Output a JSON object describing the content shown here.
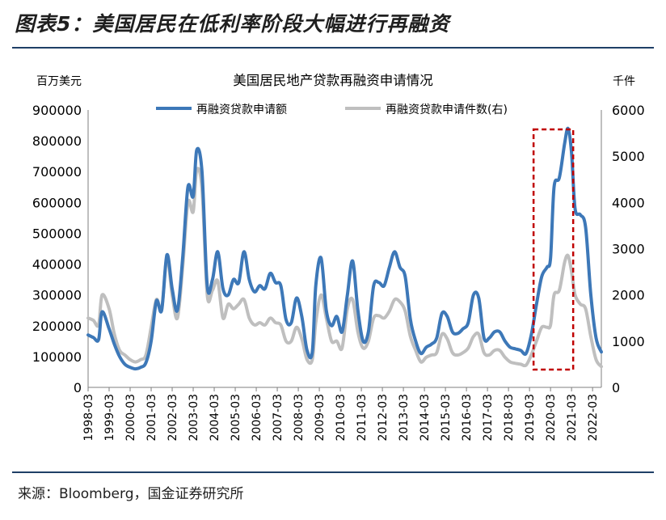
{
  "figure": {
    "title": "图表5：美国居民在低利率阶段大幅进行再融资",
    "source": "来源：Bloomberg，国金证券研究所"
  },
  "chart_data": {
    "type": "line",
    "title": "美国居民地产贷款再融资申请情况",
    "left_unit": "百万美元",
    "right_unit": "千件",
    "y_left": {
      "min": 0,
      "max": 900000,
      "ticks": [
        0,
        100000,
        200000,
        300000,
        400000,
        500000,
        600000,
        700000,
        800000,
        900000
      ]
    },
    "y_right": {
      "min": 0,
      "max": 6000,
      "ticks": [
        0,
        1000,
        2000,
        3000,
        4000,
        5000,
        6000
      ]
    },
    "x_range": [
      "1998-03",
      "2022-08"
    ],
    "x_tick_labels": [
      "1998-03",
      "1999-03",
      "2000-03",
      "2001-03",
      "2002-03",
      "2003-03",
      "2004-03",
      "2005-03",
      "2006-03",
      "2007-03",
      "2008-03",
      "2009-03",
      "2010-03",
      "2011-03",
      "2012-03",
      "2013-03",
      "2014-03",
      "2015-03",
      "2016-03",
      "2017-03",
      "2018-03",
      "2019-03",
      "2020-03",
      "2021-03",
      "2022-03"
    ],
    "legend_placement": "top",
    "highlight_box": {
      "from": "2019-03",
      "to": "2021-03"
    },
    "series": [
      {
        "name": "再融资贷款申请额",
        "axis": "left",
        "color": "#3d78b8",
        "points": [
          [
            "1998-03",
            170000
          ],
          [
            "1998-06",
            162000
          ],
          [
            "1998-09",
            155000
          ],
          [
            "1998-11",
            245000
          ],
          [
            "1999-03",
            190000
          ],
          [
            "1999-06",
            140000
          ],
          [
            "1999-09",
            100000
          ],
          [
            "1999-12",
            75000
          ],
          [
            "2000-03",
            65000
          ],
          [
            "2000-06",
            60000
          ],
          [
            "2000-09",
            65000
          ],
          [
            "2000-12",
            80000
          ],
          [
            "2001-03",
            150000
          ],
          [
            "2001-06",
            280000
          ],
          [
            "2001-09",
            250000
          ],
          [
            "2001-12",
            430000
          ],
          [
            "2002-03",
            320000
          ],
          [
            "2002-06",
            250000
          ],
          [
            "2002-09",
            420000
          ],
          [
            "2002-12",
            650000
          ],
          [
            "2003-03",
            620000
          ],
          [
            "2003-05",
            770000
          ],
          [
            "2003-08",
            700000
          ],
          [
            "2003-11",
            330000
          ],
          [
            "2004-02",
            350000
          ],
          [
            "2004-05",
            440000
          ],
          [
            "2004-08",
            320000
          ],
          [
            "2004-11",
            300000
          ],
          [
            "2005-02",
            350000
          ],
          [
            "2005-05",
            340000
          ],
          [
            "2005-08",
            440000
          ],
          [
            "2005-11",
            350000
          ],
          [
            "2006-02",
            310000
          ],
          [
            "2006-05",
            330000
          ],
          [
            "2006-08",
            320000
          ],
          [
            "2006-11",
            370000
          ],
          [
            "2007-02",
            340000
          ],
          [
            "2007-05",
            330000
          ],
          [
            "2007-08",
            220000
          ],
          [
            "2007-11",
            210000
          ],
          [
            "2008-02",
            290000
          ],
          [
            "2008-05",
            230000
          ],
          [
            "2008-08",
            120000
          ],
          [
            "2008-11",
            115000
          ],
          [
            "2009-01",
            330000
          ],
          [
            "2009-04",
            420000
          ],
          [
            "2009-07",
            250000
          ],
          [
            "2009-10",
            200000
          ],
          [
            "2010-01",
            230000
          ],
          [
            "2010-04",
            180000
          ],
          [
            "2010-07",
            300000
          ],
          [
            "2010-10",
            410000
          ],
          [
            "2011-01",
            250000
          ],
          [
            "2011-04",
            150000
          ],
          [
            "2011-07",
            180000
          ],
          [
            "2011-10",
            330000
          ],
          [
            "2012-01",
            340000
          ],
          [
            "2012-04",
            330000
          ],
          [
            "2012-07",
            390000
          ],
          [
            "2012-10",
            440000
          ],
          [
            "2013-01",
            390000
          ],
          [
            "2013-04",
            360000
          ],
          [
            "2013-07",
            220000
          ],
          [
            "2013-10",
            150000
          ],
          [
            "2014-01",
            110000
          ],
          [
            "2014-04",
            130000
          ],
          [
            "2014-07",
            140000
          ],
          [
            "2014-10",
            160000
          ],
          [
            "2015-01",
            240000
          ],
          [
            "2015-04",
            230000
          ],
          [
            "2015-07",
            180000
          ],
          [
            "2015-10",
            175000
          ],
          [
            "2016-01",
            190000
          ],
          [
            "2016-04",
            210000
          ],
          [
            "2016-07",
            300000
          ],
          [
            "2016-10",
            290000
          ],
          [
            "2017-01",
            160000
          ],
          [
            "2017-04",
            160000
          ],
          [
            "2017-07",
            180000
          ],
          [
            "2017-10",
            180000
          ],
          [
            "2018-01",
            150000
          ],
          [
            "2018-04",
            130000
          ],
          [
            "2018-07",
            125000
          ],
          [
            "2018-10",
            120000
          ],
          [
            "2019-01",
            110000
          ],
          [
            "2019-04",
            170000
          ],
          [
            "2019-07",
            270000
          ],
          [
            "2019-10",
            360000
          ],
          [
            "2020-01",
            390000
          ],
          [
            "2020-03",
            420000
          ],
          [
            "2020-05",
            650000
          ],
          [
            "2020-08",
            680000
          ],
          [
            "2020-11",
            790000
          ],
          [
            "2021-01",
            840000
          ],
          [
            "2021-03",
            760000
          ],
          [
            "2021-05",
            580000
          ],
          [
            "2021-08",
            560000
          ],
          [
            "2021-11",
            520000
          ],
          [
            "2022-02",
            300000
          ],
          [
            "2022-05",
            160000
          ],
          [
            "2022-08",
            115000
          ]
        ]
      },
      {
        "name": "再融资贷款申请件数(右)",
        "axis": "right",
        "color": "#bfbfbf",
        "points": [
          [
            "1998-03",
            1500
          ],
          [
            "1998-06",
            1450
          ],
          [
            "1998-09",
            1350
          ],
          [
            "1998-11",
            2000
          ],
          [
            "1999-03",
            1700
          ],
          [
            "1999-06",
            1150
          ],
          [
            "1999-09",
            800
          ],
          [
            "1999-12",
            700
          ],
          [
            "2000-03",
            600
          ],
          [
            "2000-06",
            550
          ],
          [
            "2000-09",
            600
          ],
          [
            "2000-12",
            700
          ],
          [
            "2001-03",
            1300
          ],
          [
            "2001-06",
            1900
          ],
          [
            "2001-09",
            1700
          ],
          [
            "2001-12",
            2800
          ],
          [
            "2002-03",
            2000
          ],
          [
            "2002-06",
            1500
          ],
          [
            "2002-09",
            2600
          ],
          [
            "2002-12",
            4000
          ],
          [
            "2003-03",
            3800
          ],
          [
            "2003-05",
            4700
          ],
          [
            "2003-08",
            4300
          ],
          [
            "2003-11",
            2000
          ],
          [
            "2004-02",
            2100
          ],
          [
            "2004-05",
            2300
          ],
          [
            "2004-08",
            1500
          ],
          [
            "2004-11",
            1800
          ],
          [
            "2005-02",
            1700
          ],
          [
            "2005-05",
            1800
          ],
          [
            "2005-08",
            1900
          ],
          [
            "2005-11",
            1500
          ],
          [
            "2006-02",
            1350
          ],
          [
            "2006-05",
            1400
          ],
          [
            "2006-08",
            1350
          ],
          [
            "2006-11",
            1500
          ],
          [
            "2007-02",
            1400
          ],
          [
            "2007-05",
            1350
          ],
          [
            "2007-08",
            1000
          ],
          [
            "2007-11",
            1000
          ],
          [
            "2008-02",
            1300
          ],
          [
            "2008-05",
            1050
          ],
          [
            "2008-08",
            600
          ],
          [
            "2008-11",
            600
          ],
          [
            "2009-01",
            1400
          ],
          [
            "2009-04",
            2000
          ],
          [
            "2009-07",
            1500
          ],
          [
            "2009-10",
            1000
          ],
          [
            "2010-01",
            1000
          ],
          [
            "2010-04",
            850
          ],
          [
            "2010-07",
            1700
          ],
          [
            "2010-10",
            1900
          ],
          [
            "2011-01",
            1200
          ],
          [
            "2011-04",
            850
          ],
          [
            "2011-07",
            1000
          ],
          [
            "2011-10",
            1500
          ],
          [
            "2012-01",
            1550
          ],
          [
            "2012-04",
            1500
          ],
          [
            "2012-07",
            1650
          ],
          [
            "2012-10",
            1900
          ],
          [
            "2013-01",
            1850
          ],
          [
            "2013-04",
            1650
          ],
          [
            "2013-07",
            1100
          ],
          [
            "2013-10",
            800
          ],
          [
            "2014-01",
            550
          ],
          [
            "2014-04",
            650
          ],
          [
            "2014-07",
            700
          ],
          [
            "2014-10",
            750
          ],
          [
            "2015-01",
            1150
          ],
          [
            "2015-04",
            1050
          ],
          [
            "2015-07",
            750
          ],
          [
            "2015-10",
            700
          ],
          [
            "2016-01",
            750
          ],
          [
            "2016-04",
            850
          ],
          [
            "2016-07",
            1100
          ],
          [
            "2016-10",
            1150
          ],
          [
            "2017-01",
            750
          ],
          [
            "2017-04",
            700
          ],
          [
            "2017-07",
            800
          ],
          [
            "2017-10",
            800
          ],
          [
            "2018-01",
            650
          ],
          [
            "2018-04",
            550
          ],
          [
            "2018-07",
            520
          ],
          [
            "2018-10",
            500
          ],
          [
            "2019-01",
            480
          ],
          [
            "2019-04",
            700
          ],
          [
            "2019-07",
            1000
          ],
          [
            "2019-10",
            1300
          ],
          [
            "2020-01",
            1300
          ],
          [
            "2020-03",
            1350
          ],
          [
            "2020-05",
            2000
          ],
          [
            "2020-08",
            2100
          ],
          [
            "2020-11",
            2700
          ],
          [
            "2021-01",
            2850
          ],
          [
            "2021-03",
            2500
          ],
          [
            "2021-05",
            2000
          ],
          [
            "2021-08",
            1800
          ],
          [
            "2021-11",
            1700
          ],
          [
            "2022-02",
            1100
          ],
          [
            "2022-05",
            600
          ],
          [
            "2022-08",
            450
          ]
        ]
      }
    ]
  }
}
